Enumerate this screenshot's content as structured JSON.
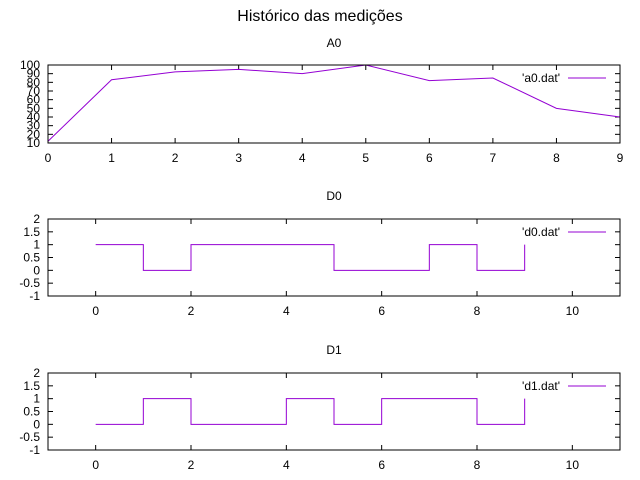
{
  "title": "Histórico das medições",
  "series_color": "#9400d3",
  "chart_data": [
    {
      "type": "line",
      "title": "A0",
      "xlim": [
        0,
        9
      ],
      "ylim": [
        10,
        100
      ],
      "xticks": [
        0,
        1,
        2,
        3,
        4,
        5,
        6,
        7,
        8,
        9
      ],
      "yticks": [
        10,
        20,
        30,
        40,
        50,
        60,
        70,
        80,
        90,
        100
      ],
      "legend": "top-right",
      "series": [
        {
          "name": "'a0.dat'",
          "x": [
            0,
            1,
            2,
            3,
            4,
            5,
            6,
            7,
            8,
            9
          ],
          "y": [
            12,
            83,
            92,
            95,
            90,
            100,
            82,
            85,
            50,
            40
          ]
        }
      ]
    },
    {
      "type": "line",
      "step": true,
      "title": "D0",
      "xlim": [
        -1,
        11
      ],
      "ylim": [
        -1,
        2
      ],
      "xticks": [
        0,
        2,
        4,
        6,
        8,
        10
      ],
      "yticks": [
        -1,
        -0.5,
        0,
        0.5,
        1,
        1.5,
        2
      ],
      "legend": "top-right",
      "series": [
        {
          "name": "'d0.dat'",
          "x": [
            0,
            1,
            2,
            3,
            4,
            5,
            6,
            7,
            8,
            9
          ],
          "y": [
            1,
            0,
            1,
            1,
            1,
            0,
            0,
            1,
            0,
            1
          ]
        }
      ]
    },
    {
      "type": "line",
      "step": true,
      "title": "D1",
      "xlim": [
        -1,
        11
      ],
      "ylim": [
        -1,
        2
      ],
      "xticks": [
        0,
        2,
        4,
        6,
        8,
        10
      ],
      "yticks": [
        -1,
        -0.5,
        0,
        0.5,
        1,
        1.5,
        2
      ],
      "legend": "top-right",
      "series": [
        {
          "name": "'d1.dat'",
          "x": [
            0,
            1,
            2,
            3,
            4,
            5,
            6,
            7,
            8,
            9
          ],
          "y": [
            0,
            1,
            0,
            0,
            1,
            0,
            1,
            1,
            0,
            1
          ]
        }
      ]
    }
  ]
}
